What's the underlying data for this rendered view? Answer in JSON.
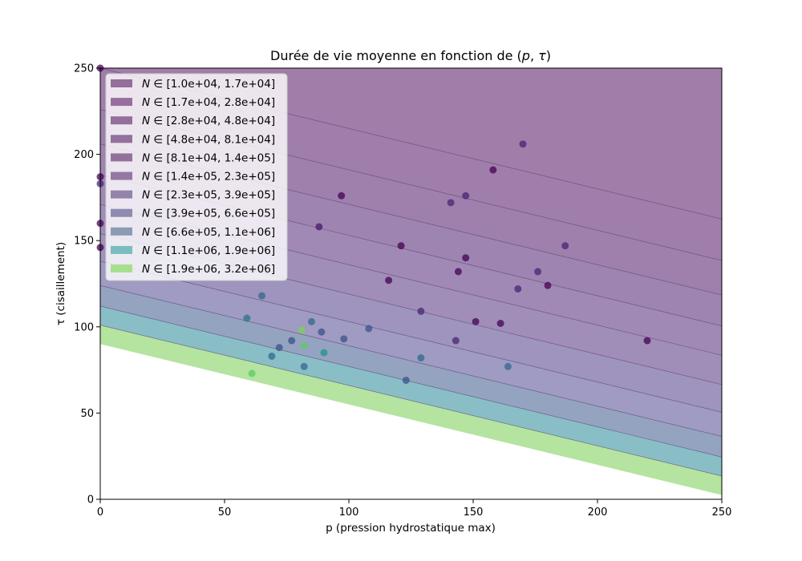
{
  "chart_data": {
    "type": "area",
    "title": "Durée de vie moyenne en fonction de (p, τ)",
    "title_parts": {
      "prefix": "Durée de vie moyenne en fonction de (",
      "var_p": "p",
      "sep": ", ",
      "var_tau": "τ",
      "suffix": ")"
    },
    "xlabel": "p (pression hydrostatique max)",
    "ylabel": "τ (cisaillement)",
    "xlim": [
      0,
      250
    ],
    "ylim": [
      0,
      250
    ],
    "xticks": [
      "0",
      "50",
      "100",
      "150",
      "200",
      "250"
    ],
    "yticks": [
      "0",
      "50",
      "100",
      "150",
      "200",
      "250"
    ],
    "grid": false,
    "legend_position": "upper-left",
    "boundary_slope": -0.35,
    "boundary_intercepts": [
      90,
      101,
      112,
      124,
      138,
      154,
      171,
      188,
      206,
      226,
      250,
      1000
    ],
    "band_colors": [
      "#b5e3a0",
      "#89bec6",
      "#94a3c0",
      "#9f9bc2",
      "#9e94bd",
      "#a08eb9",
      "#a089b4",
      "#9e84b0",
      "#9f80ad",
      "#a07eab",
      "#a07ea9"
    ],
    "series": [
      {
        "name_symbol": "N",
        "name_op": "∈",
        "name_range": "[1.0e+04, 1.7e+04]",
        "color": "#956e9c"
      },
      {
        "name_symbol": "N",
        "name_op": "∈",
        "name_range": "[1.7e+04, 2.8e+04]",
        "color": "#976f9f"
      },
      {
        "name_symbol": "N",
        "name_op": "∈",
        "name_range": "[2.8e+04, 4.8e+04]",
        "color": "#956e9c"
      },
      {
        "name_symbol": "N",
        "name_op": "∈",
        "name_range": "[4.8e+04, 8.1e+04]",
        "color": "#93709e"
      },
      {
        "name_symbol": "N",
        "name_op": "∈",
        "name_range": "[8.1e+04, 1.4e+05]",
        "color": "#92729d"
      },
      {
        "name_symbol": "N",
        "name_op": "∈",
        "name_range": "[1.4e+05, 2.3e+05]",
        "color": "#9577a3"
      },
      {
        "name_symbol": "N",
        "name_op": "∈",
        "name_range": "[2.3e+05, 3.9e+05]",
        "color": "#9483aa"
      },
      {
        "name_symbol": "N",
        "name_op": "∈",
        "name_range": "[3.9e+05, 6.6e+05]",
        "color": "#8f8ab0"
      },
      {
        "name_symbol": "N",
        "name_op": "∈",
        "name_range": "[6.6e+05, 1.1e+06]",
        "color": "#8c9bb3"
      },
      {
        "name_symbol": "N",
        "name_op": "∈",
        "name_range": "[1.1e+06, 1.9e+06]",
        "color": "#7bbcc0"
      },
      {
        "name_symbol": "N",
        "name_op": "∈",
        "name_range": "[1.9e+06, 3.2e+06]",
        "color": "#a6e08e"
      }
    ],
    "points": [
      {
        "p": 0,
        "tau": 250,
        "color": "#440154"
      },
      {
        "p": 0,
        "tau": 187,
        "color": "#440154"
      },
      {
        "p": 0,
        "tau": 183,
        "color": "#482475"
      },
      {
        "p": 0,
        "tau": 160,
        "color": "#440154"
      },
      {
        "p": 0,
        "tau": 146,
        "color": "#440154"
      },
      {
        "p": 97,
        "tau": 176,
        "color": "#440154"
      },
      {
        "p": 88,
        "tau": 158,
        "color": "#48186a"
      },
      {
        "p": 65,
        "tau": 118,
        "color": "#31688e"
      },
      {
        "p": 59,
        "tau": 105,
        "color": "#2c728e"
      },
      {
        "p": 61,
        "tau": 73,
        "color": "#5ec962"
      },
      {
        "p": 69,
        "tau": 83,
        "color": "#31688e"
      },
      {
        "p": 72,
        "tau": 88,
        "color": "#3b528b"
      },
      {
        "p": 77,
        "tau": 92,
        "color": "#3b528b"
      },
      {
        "p": 81,
        "tau": 98,
        "color": "#7ad151"
      },
      {
        "p": 82,
        "tau": 89,
        "color": "#5ec962"
      },
      {
        "p": 82,
        "tau": 77,
        "color": "#31688e"
      },
      {
        "p": 85,
        "tau": 103,
        "color": "#31688e"
      },
      {
        "p": 89,
        "tau": 97,
        "color": "#3b528b"
      },
      {
        "p": 90,
        "tau": 85,
        "color": "#21918c"
      },
      {
        "p": 98,
        "tau": 93,
        "color": "#3b528b"
      },
      {
        "p": 108,
        "tau": 99,
        "color": "#3b528b"
      },
      {
        "p": 116,
        "tau": 127,
        "color": "#440154"
      },
      {
        "p": 121,
        "tau": 147,
        "color": "#440154"
      },
      {
        "p": 123,
        "tau": 69,
        "color": "#3b528b"
      },
      {
        "p": 129,
        "tau": 109,
        "color": "#482475"
      },
      {
        "p": 129,
        "tau": 82,
        "color": "#31688e"
      },
      {
        "p": 141,
        "tau": 172,
        "color": "#482475"
      },
      {
        "p": 143,
        "tau": 92,
        "color": "#482475"
      },
      {
        "p": 144,
        "tau": 132,
        "color": "#440154"
      },
      {
        "p": 147,
        "tau": 176,
        "color": "#482475"
      },
      {
        "p": 147,
        "tau": 140,
        "color": "#440154"
      },
      {
        "p": 151,
        "tau": 103,
        "color": "#440154"
      },
      {
        "p": 158,
        "tau": 191,
        "color": "#440154"
      },
      {
        "p": 161,
        "tau": 102,
        "color": "#440154"
      },
      {
        "p": 164,
        "tau": 77,
        "color": "#31688e"
      },
      {
        "p": 168,
        "tau": 122,
        "color": "#482475"
      },
      {
        "p": 170,
        "tau": 206,
        "color": "#482475"
      },
      {
        "p": 176,
        "tau": 132,
        "color": "#482475"
      },
      {
        "p": 180,
        "tau": 124,
        "color": "#440154"
      },
      {
        "p": 187,
        "tau": 147,
        "color": "#482475"
      },
      {
        "p": 220,
        "tau": 92,
        "color": "#440154"
      }
    ]
  }
}
